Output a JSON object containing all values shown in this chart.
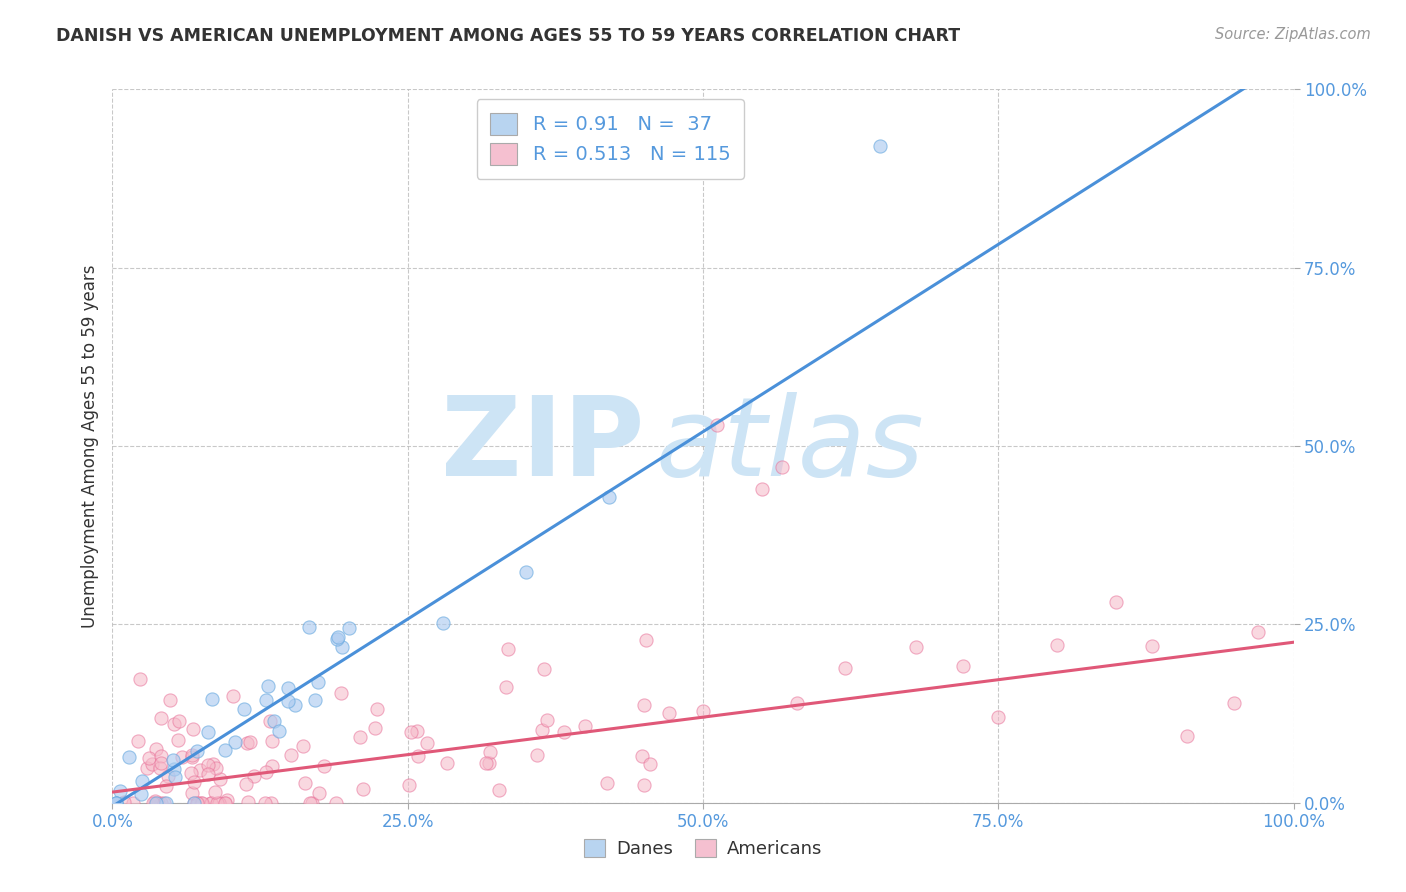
{
  "title": "DANISH VS AMERICAN UNEMPLOYMENT AMONG AGES 55 TO 59 YEARS CORRELATION CHART",
  "source": "Source: ZipAtlas.com",
  "ylabel": "Unemployment Among Ages 55 to 59 years",
  "xlim": [
    0.0,
    1.0
  ],
  "ylim": [
    0.0,
    1.0
  ],
  "xticks": [
    0.0,
    0.25,
    0.5,
    0.75,
    1.0
  ],
  "yticks": [
    0.0,
    0.25,
    0.5,
    0.75,
    1.0
  ],
  "xticklabels": [
    "0.0%",
    "25.0%",
    "50.0%",
    "75.0%",
    "100.0%"
  ],
  "yticklabels": [
    "0.0%",
    "25.0%",
    "50.0%",
    "75.0%",
    "100.0%"
  ],
  "danes_fill_color": "#aeccf0",
  "danes_edge_color": "#6aaae0",
  "americans_fill_color": "#f5b8c8",
  "americans_edge_color": "#e87098",
  "danes_line_color": "#4a90d9",
  "americans_line_color": "#e05878",
  "danes_R": 0.91,
  "danes_N": 37,
  "americans_R": 0.513,
  "americans_N": 115,
  "watermark_zip": "ZIP",
  "watermark_atlas": "atlas",
  "watermark_color": "#cde4f5",
  "background_color": "#ffffff",
  "grid_color": "#bbbbbb",
  "title_color": "#333333",
  "legend_box_color_danes": "#b8d4f0",
  "legend_box_color_americans": "#f5c0d0",
  "tick_color": "#5599dd",
  "danes_slope": 1.05,
  "danes_intercept": -0.005,
  "americans_slope": 0.21,
  "americans_intercept": 0.015
}
